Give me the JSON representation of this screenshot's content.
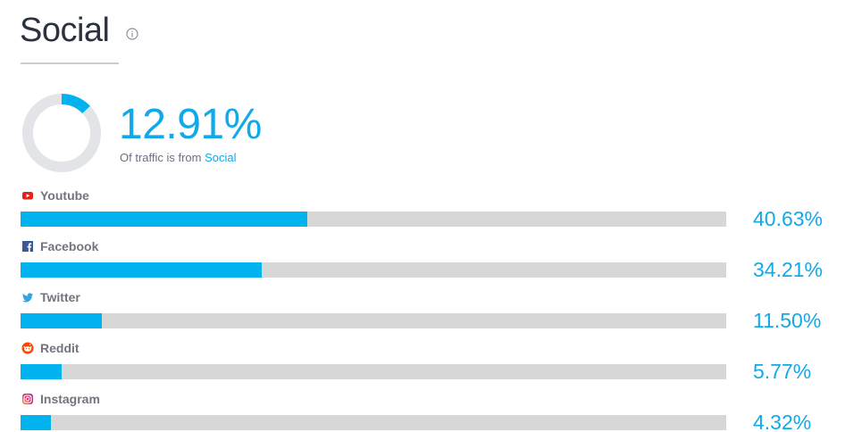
{
  "title": "Social",
  "summary": {
    "percent_text": "12.91%",
    "percent_value": 12.91,
    "caption_prefix": "Of traffic is from",
    "caption_highlight": "Social"
  },
  "colors": {
    "accent": "#00b2ed",
    "track": "#d7d7d7",
    "donut_track": "#e3e4e8"
  },
  "chart_data": {
    "type": "bar",
    "orientation": "horizontal",
    "xlim": [
      0,
      100
    ],
    "categories": [
      "Youtube",
      "Facebook",
      "Twitter",
      "Reddit",
      "Instagram"
    ],
    "values": [
      40.63,
      34.21,
      11.5,
      5.77,
      4.32
    ],
    "value_labels": [
      "40.63%",
      "34.21%",
      "11.50%",
      "5.77%",
      "4.32%"
    ],
    "icons": [
      "youtube-icon",
      "facebook-icon",
      "twitter-icon",
      "reddit-icon",
      "instagram-icon"
    ]
  }
}
